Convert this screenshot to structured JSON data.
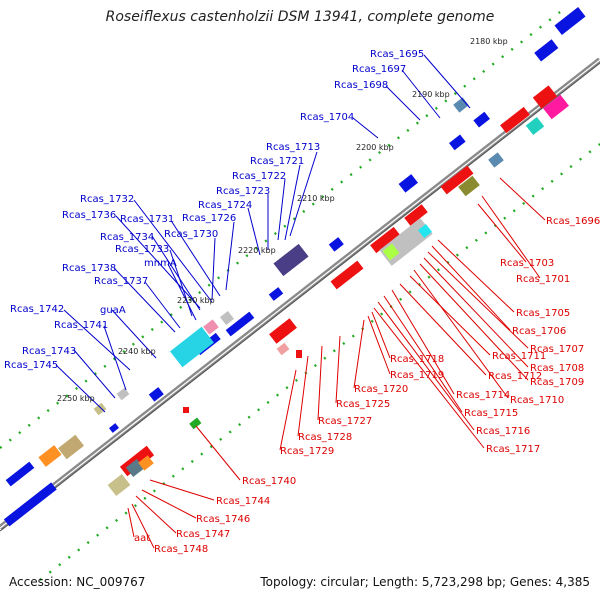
{
  "header": {
    "title": "Roseiflexus castenholzii DSM 13941, complete genome"
  },
  "footer": {
    "accession": "Accession: NC_009767",
    "summary": "Topology: circular; Length: 5,723,298 bp; Genes: 4,385"
  },
  "scale_ticks": [
    "2180 kbp",
    "2190 kbp",
    "2200 kbp",
    "2210 kbp",
    "2220 kbp",
    "2230 kbp",
    "2240 kbp",
    "2250 kbp"
  ],
  "forward_gene_labels": [
    "Rcas_1695",
    "Rcas_1697",
    "Rcas_1698",
    "Rcas_1704",
    "Rcas_1713",
    "Rcas_1721",
    "Rcas_1722",
    "Rcas_1723",
    "Rcas_1724",
    "Rcas_1726",
    "Rcas_1730",
    "Rcas_1731",
    "Rcas_1732",
    "Rcas_1736",
    "Rcas_1734",
    "Rcas_1733",
    "mnmA",
    "Rcas_1738",
    "Rcas_1737",
    "guaA",
    "Rcas_1742",
    "Rcas_1741",
    "Rcas_1743",
    "Rcas_1745"
  ],
  "reverse_gene_labels": [
    "Rcas_1696",
    "Rcas_1703",
    "Rcas_1701",
    "Rcas_1705",
    "Rcas_1706",
    "Rcas_1707",
    "Rcas_1708",
    "Rcas_1709",
    "Rcas_1710",
    "Rcas_1711",
    "Rcas_1712",
    "Rcas_1714",
    "Rcas_1715",
    "Rcas_1716",
    "Rcas_1717",
    "Rcas_1718",
    "Rcas_1719",
    "Rcas_1720",
    "Rcas_1725",
    "Rcas_1727",
    "Rcas_1728",
    "Rcas_1729",
    "Rcas_1740",
    "Rcas_1744",
    "Rcas_1746",
    "Rcas_1747",
    "Rcas_1748",
    "aat"
  ],
  "colors": {
    "forward_cds": "#0a14e0",
    "reverse_cds": "#ee1111",
    "backbone": "#8a8a8a",
    "forward_label": "#0000cc",
    "reverse_label": "#dd0000",
    "gc_dots": "#22aa22"
  }
}
